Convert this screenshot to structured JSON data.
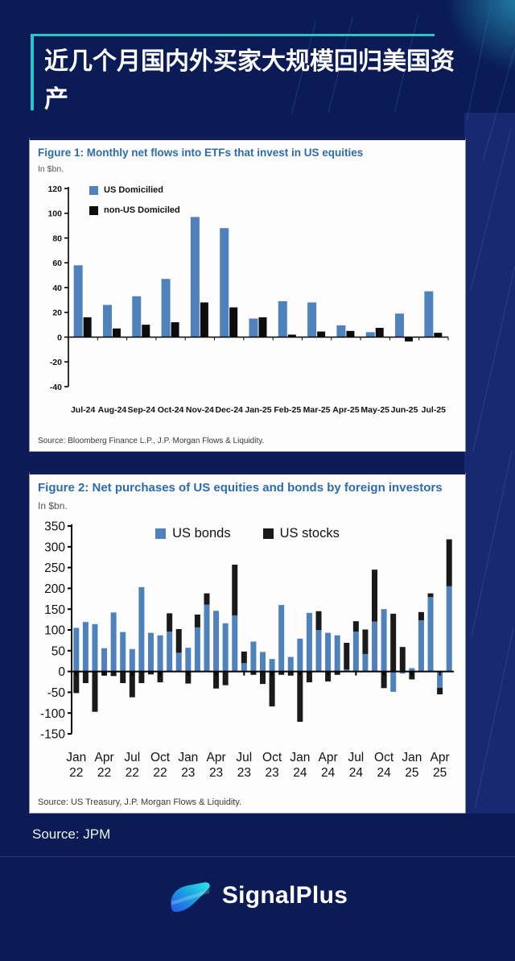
{
  "header": {
    "title": "近几个月国内外买家大规模回归美国资产"
  },
  "chart_data": [
    {
      "type": "bar",
      "mode": "grouped",
      "title": "Figure 1: Monthly net flows into ETFs that invest in US equities",
      "unit": "In $bn.",
      "source": "Source: Bloomberg Finance L.P., J.P. Morgan Flows & Liquidity.",
      "categories": [
        "Jul-24",
        "Aug-24",
        "Sep-24",
        "Oct-24",
        "Nov-24",
        "Dec-24",
        "Jan-25",
        "Feb-25",
        "Mar-25",
        "Apr-25",
        "May-25",
        "Jun-25",
        "Jul-25"
      ],
      "series": [
        {
          "name": "US Domicilied",
          "color": "#4f81bd",
          "values": [
            58,
            26,
            33,
            47,
            97,
            88,
            15,
            29,
            28,
            9.5,
            4,
            19,
            37
          ]
        },
        {
          "name": "non-US Domiciled",
          "color": "#0d0d0d",
          "values": [
            16,
            7,
            10,
            12,
            28,
            24,
            16,
            2,
            4.5,
            5,
            7.5,
            -3.5,
            3.5
          ]
        }
      ],
      "ylim": [
        -40,
        120
      ],
      "ytick": 20,
      "grid": false,
      "legend_position": "top-left"
    },
    {
      "type": "bar",
      "mode": "stacked",
      "title": "Figure 2: Net purchases of US equities and bonds by foreign investors",
      "unit": "In $bn.",
      "source": "Source: US Treasury, J.P. Morgan Flows & Liquidity.",
      "categories": [
        "Jan-22",
        "Feb-22",
        "Mar-22",
        "Apr-22",
        "May-22",
        "Jun-22",
        "Jul-22",
        "Aug-22",
        "Sep-22",
        "Oct-22",
        "Nov-22",
        "Dec-22",
        "Jan-23",
        "Feb-23",
        "Mar-23",
        "Apr-23",
        "May-23",
        "Jun-23",
        "Jul-23",
        "Aug-23",
        "Sep-23",
        "Oct-23",
        "Nov-23",
        "Dec-23",
        "Jan-24",
        "Feb-24",
        "Mar-24",
        "Apr-24",
        "May-24",
        "Jun-24",
        "Jul-24",
        "Aug-24",
        "Sep-24",
        "Oct-24",
        "Nov-24",
        "Dec-24",
        "Jan-25",
        "Feb-25",
        "Mar-25",
        "Apr-25",
        "May-25"
      ],
      "series": [
        {
          "name": "US bonds",
          "color": "#4f81bd",
          "values": [
            105,
            119,
            114,
            56,
            142,
            95,
            54,
            203,
            93,
            87,
            96,
            45,
            57,
            106,
            161,
            146,
            116,
            135,
            20,
            72,
            47,
            30,
            160,
            35,
            79,
            141,
            100,
            93,
            87,
            5,
            96,
            42,
            120,
            150,
            -49,
            -5,
            8,
            123,
            179,
            -39,
            205
          ]
        },
        {
          "name": "US stocks",
          "color": "#1a1a1a",
          "values": [
            -52,
            -28,
            -97,
            -10,
            -11,
            -28,
            -62,
            -28,
            -7,
            -26,
            44,
            57,
            -29,
            31,
            27,
            -41,
            -33,
            122,
            28,
            -8,
            -30,
            -84,
            -8,
            -10,
            -121,
            -26,
            45,
            -24,
            -8,
            64,
            25,
            59,
            125,
            -40,
            139,
            59,
            -19,
            20,
            9,
            -16,
            113
          ]
        }
      ],
      "ylim": [
        -150,
        350
      ],
      "ytick": 50,
      "x_tick_every": 3,
      "grid": false,
      "legend_position": "top-center"
    }
  ],
  "footer": {
    "source_note": "Source: JPM",
    "brand": "SignalPlus"
  },
  "colors": {
    "background": "#0a1b55",
    "accent_teal": "#2cc5c7",
    "figure_title_blue": "#2d6cab",
    "bar_blue": "#4f81bd",
    "bar_black": "#1a1a1a",
    "logo_blue": "#2356e8",
    "logo_cyan": "#2ee6e6"
  }
}
